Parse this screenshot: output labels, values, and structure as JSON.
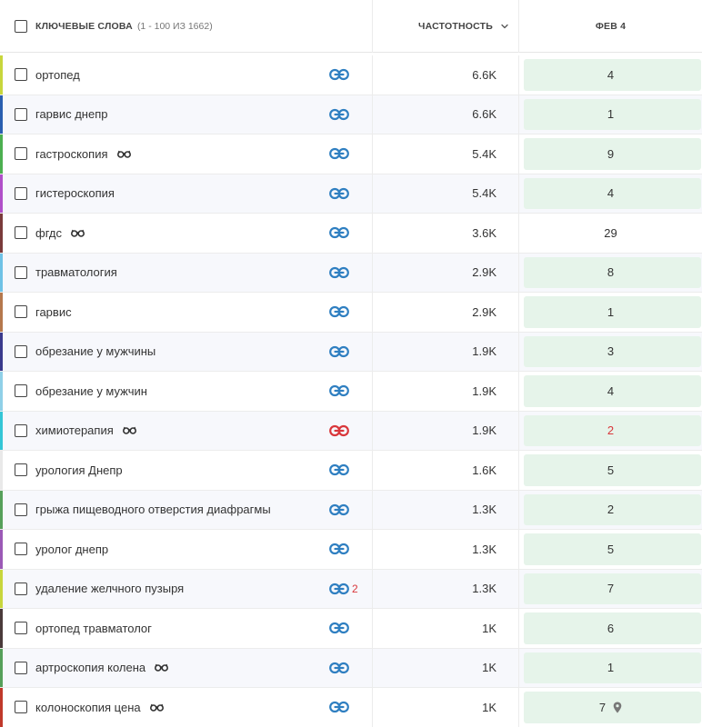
{
  "header": {
    "keywords_label": "КЛЮЧЕВЫЕ СЛОВА",
    "keywords_count": "(1 - 100 ИЗ 1662)",
    "frequency_label": "ЧАСТОТНОСТЬ",
    "date_label": "ФЕВ 4"
  },
  "colors": {
    "link_blue": "#2f7fc1",
    "link_red": "#d9373b",
    "position_green_bg": "#e6f4ea"
  },
  "rows": [
    {
      "keyword": "ортопед",
      "glasses": false,
      "link_color": "#2f7fc1",
      "link_count": "",
      "frequency": "6.6K",
      "position": "4",
      "highlight": true,
      "red": false,
      "pin": false,
      "accent": "#c8d63c"
    },
    {
      "keyword": "гарвис днепр",
      "glasses": false,
      "link_color": "#2f7fc1",
      "link_count": "",
      "frequency": "6.6K",
      "position": "1",
      "highlight": true,
      "red": false,
      "pin": false,
      "accent": "#2a5fb0"
    },
    {
      "keyword": "гастроскопия",
      "glasses": true,
      "link_color": "#2f7fc1",
      "link_count": "",
      "frequency": "5.4K",
      "position": "9",
      "highlight": true,
      "red": false,
      "pin": false,
      "accent": "#4caf50"
    },
    {
      "keyword": "гистероскопия",
      "glasses": false,
      "link_color": "#2f7fc1",
      "link_count": "",
      "frequency": "5.4K",
      "position": "4",
      "highlight": true,
      "red": false,
      "pin": false,
      "accent": "#b04fc9"
    },
    {
      "keyword": "фгдс",
      "glasses": true,
      "link_color": "#2f7fc1",
      "link_count": "",
      "frequency": "3.6K",
      "position": "29",
      "highlight": false,
      "red": false,
      "pin": false,
      "accent": "#7a3b3b"
    },
    {
      "keyword": "травматология",
      "glasses": false,
      "link_color": "#2f7fc1",
      "link_count": "",
      "frequency": "2.9K",
      "position": "8",
      "highlight": true,
      "red": false,
      "pin": false,
      "accent": "#6fc2e6"
    },
    {
      "keyword": "гарвис",
      "glasses": false,
      "link_color": "#2f7fc1",
      "link_count": "",
      "frequency": "2.9K",
      "position": "1",
      "highlight": true,
      "red": false,
      "pin": false,
      "accent": "#b5784d"
    },
    {
      "keyword": "обрезание у мужчины",
      "glasses": false,
      "link_color": "#2f7fc1",
      "link_count": "",
      "frequency": "1.9K",
      "position": "3",
      "highlight": true,
      "red": false,
      "pin": false,
      "accent": "#3a3a8c"
    },
    {
      "keyword": "обрезание у мужчин",
      "glasses": false,
      "link_color": "#2f7fc1",
      "link_count": "",
      "frequency": "1.9K",
      "position": "4",
      "highlight": true,
      "red": false,
      "pin": false,
      "accent": "#8fd0e8"
    },
    {
      "keyword": "химиотерапия",
      "glasses": true,
      "link_color": "#d9373b",
      "link_count": "",
      "frequency": "1.9K",
      "position": "2",
      "highlight": true,
      "red": true,
      "pin": false,
      "accent": "#34c6d6"
    },
    {
      "keyword": "урология Днепр",
      "glasses": false,
      "link_color": "#2f7fc1",
      "link_count": "",
      "frequency": "1.6K",
      "position": "5",
      "highlight": true,
      "red": false,
      "pin": false,
      "accent": "#e9e9e9"
    },
    {
      "keyword": "грыжа пищеводного отверстия диафрагмы",
      "glasses": false,
      "link_color": "#2f7fc1",
      "link_count": "",
      "frequency": "1.3K",
      "position": "2",
      "highlight": true,
      "red": false,
      "pin": false,
      "accent": "#56a05a"
    },
    {
      "keyword": "уролог днепр",
      "glasses": false,
      "link_color": "#2f7fc1",
      "link_count": "",
      "frequency": "1.3K",
      "position": "5",
      "highlight": true,
      "red": false,
      "pin": false,
      "accent": "#9b59b6"
    },
    {
      "keyword": "удаление желчного пузыря",
      "glasses": false,
      "link_color": "#2f7fc1",
      "link_count": "2",
      "frequency": "1.3K",
      "position": "7",
      "highlight": true,
      "red": false,
      "pin": false,
      "accent": "#c8d63c"
    },
    {
      "keyword": "ортопед травматолог",
      "glasses": false,
      "link_color": "#2f7fc1",
      "link_count": "",
      "frequency": "1K",
      "position": "6",
      "highlight": true,
      "red": false,
      "pin": false,
      "accent": "#4a3a3a"
    },
    {
      "keyword": "артроскопия колена",
      "glasses": true,
      "link_color": "#2f7fc1",
      "link_count": "",
      "frequency": "1K",
      "position": "1",
      "highlight": true,
      "red": false,
      "pin": false,
      "accent": "#56a05a"
    },
    {
      "keyword": "колоноскопия цена",
      "glasses": true,
      "link_color": "#2f7fc1",
      "link_count": "",
      "frequency": "1K",
      "position": "7",
      "highlight": true,
      "red": false,
      "pin": true,
      "accent": "#c0392b"
    }
  ]
}
